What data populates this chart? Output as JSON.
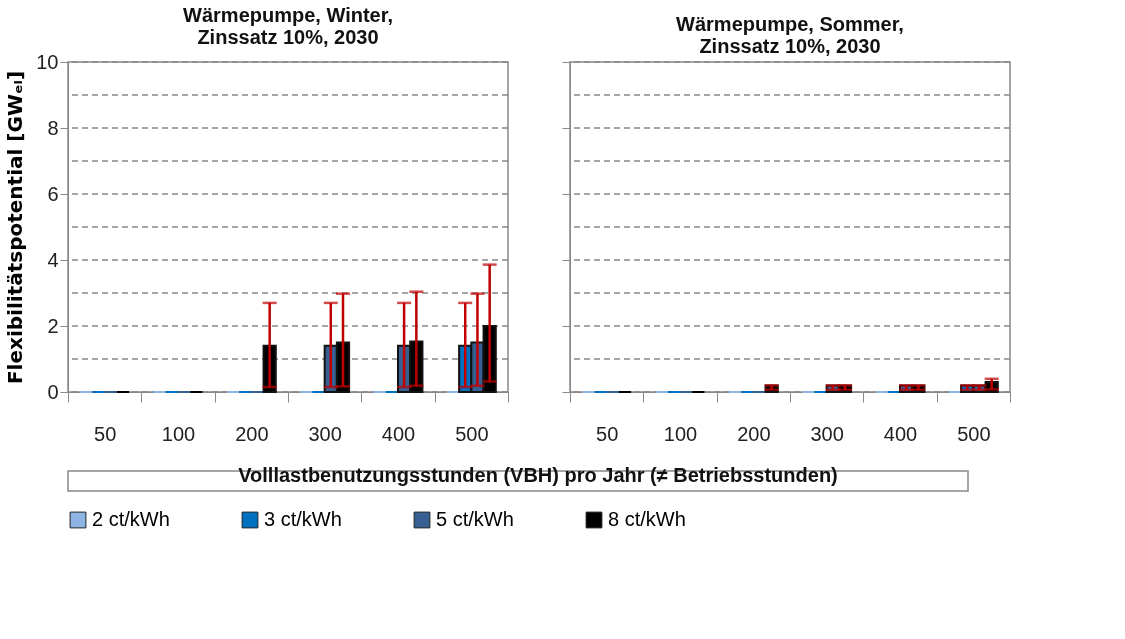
{
  "chart_data": [
    {
      "type": "bar",
      "title": "Wärmepumpe, Winter,\nZinssatz 10%, 2030",
      "ylabel": "Flexibilitätspotential [GWₑₗ]",
      "xlabel": "Volllastbenutzungsstunden (VBH) pro Jahr (≠ Betriebsstunden)",
      "categories": [
        "50",
        "100",
        "200",
        "300",
        "400",
        "500"
      ],
      "ylim": [
        0,
        10
      ],
      "yticks": [
        0,
        {
          "value": 1,
          "label": null
        },
        2,
        {
          "value": 3,
          "label": null
        },
        4,
        {
          "value": 5,
          "label": null
        },
        6,
        {
          "value": 7,
          "label": null
        },
        8,
        {
          "value": 9,
          "label": null
        },
        10
      ],
      "grid": "y",
      "legend": "bottom",
      "series": [
        {
          "name": "2 ct/kWh",
          "color": "#8db4e2",
          "values": [
            0,
            0,
            0,
            0,
            0,
            0
          ]
        },
        {
          "name": "3 ct/kWh",
          "color": "#0070c0",
          "values": [
            0,
            0,
            0,
            0,
            0,
            1.4
          ],
          "errors": [
            null,
            null,
            null,
            null,
            null,
            [
              0.15,
              2.7
            ]
          ]
        },
        {
          "name": "5 ct/kWh",
          "color": "#376092",
          "values": [
            0,
            0,
            0,
            1.4,
            1.4,
            1.5
          ],
          "errors": [
            null,
            null,
            null,
            [
              0.15,
              2.7
            ],
            [
              0.15,
              2.7
            ],
            [
              0.19,
              2.98
            ]
          ]
        },
        {
          "name": "8 ct/kWh",
          "color": "#000000",
          "values": [
            0,
            0,
            1.4,
            1.5,
            1.53,
            2.0
          ],
          "errors": [
            null,
            null,
            [
              0.15,
              2.7
            ],
            [
              0.17,
              2.98
            ],
            [
              0.19,
              3.04
            ],
            [
              0.32,
              3.86
            ]
          ]
        }
      ]
    },
    {
      "type": "bar",
      "title": "Wärmepumpe, Sommer,\nZinssatz 10%, 2030",
      "categories": [
        "50",
        "100",
        "200",
        "300",
        "400",
        "500"
      ],
      "ylim": [
        0,
        10
      ],
      "yticks": [
        0,
        {
          "value": 1,
          "label": null
        },
        2,
        {
          "value": 3,
          "label": null
        },
        4,
        {
          "value": 5,
          "label": null
        },
        6,
        {
          "value": 7,
          "label": null
        },
        8,
        {
          "value": 9,
          "label": null
        },
        10
      ],
      "grid": "y",
      "tick_labels": "x",
      "series": [
        {
          "name": "2 ct/kWh",
          "color": "#8db4e2",
          "values": [
            0,
            0,
            0,
            0,
            0,
            0
          ]
        },
        {
          "name": "3 ct/kWh",
          "color": "#0070c0",
          "values": [
            0,
            0,
            0,
            0,
            0,
            0.2
          ],
          "errors": [
            null,
            null,
            null,
            null,
            null,
            [
              0.07,
              0.2
            ]
          ]
        },
        {
          "name": "5 ct/kWh",
          "color": "#376092",
          "values": [
            0,
            0,
            0,
            0.2,
            0.2,
            0.2
          ],
          "errors": [
            null,
            null,
            null,
            [
              0.07,
              0.2
            ],
            [
              0.07,
              0.2
            ],
            [
              0.07,
              0.2
            ]
          ]
        },
        {
          "name": "8 ct/kWh",
          "color": "#000000",
          "values": [
            0,
            0,
            0.2,
            0.2,
            0.2,
            0.3
          ],
          "errors": [
            null,
            null,
            [
              0.07,
              0.2
            ],
            [
              0.07,
              0.2
            ],
            [
              0.07,
              0.2
            ],
            [
              0.08,
              0.4
            ]
          ]
        }
      ]
    }
  ]
}
